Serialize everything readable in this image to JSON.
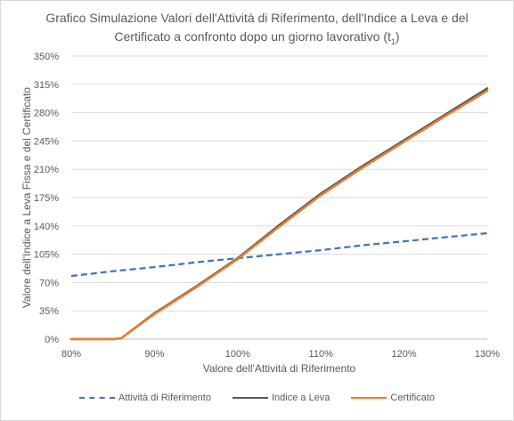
{
  "title": {
    "line1": "Grafico Simulazione Valori dell'Attività di Riferimento, dell'Indice a Leva e del",
    "line2": "Certificato a confronto dopo un giorno lavorativo (t",
    "line2_sub": "1",
    "line2_end": ")"
  },
  "chart_data": {
    "type": "line",
    "xlabel": "Valore dell'Attività di Riferimento",
    "ylabel": "Valore dell'Indice a Leva Fissa e del Certificato",
    "xlim": [
      80,
      130
    ],
    "ylim": [
      0,
      350
    ],
    "x_ticks": [
      "80%",
      "90%",
      "100%",
      "110%",
      "120%",
      "130%"
    ],
    "x_tick_values": [
      80,
      90,
      100,
      110,
      120,
      130
    ],
    "y_ticks": [
      "0%",
      "35%",
      "70%",
      "105%",
      "140%",
      "175%",
      "210%",
      "245%",
      "280%",
      "315%",
      "350%"
    ],
    "y_tick_values": [
      0,
      35,
      70,
      105,
      140,
      175,
      210,
      245,
      280,
      315,
      350
    ],
    "grid": "horizontal",
    "legend_position": "bottom",
    "series": [
      {
        "name": "Attività di Riferimento",
        "color": "#4472c4",
        "style": "dashed",
        "x": [
          80,
          85,
          90,
          95,
          100,
          105,
          110,
          115,
          120,
          125,
          130
        ],
        "y": [
          78,
          84,
          89,
          95,
          100,
          105,
          110,
          116,
          121,
          126,
          131
        ]
      },
      {
        "name": "Indice a Leva",
        "color": "#595959",
        "style": "solid",
        "x": [
          80,
          85,
          86,
          90,
          95,
          100,
          105,
          110,
          115,
          120,
          125,
          130
        ],
        "y": [
          0,
          0,
          1,
          32,
          65,
          100,
          141,
          180,
          214,
          246,
          278,
          310
        ]
      },
      {
        "name": "Certificato",
        "color": "#ed7d31",
        "style": "solid",
        "x": [
          80,
          85,
          86,
          90,
          95,
          100,
          105,
          110,
          115,
          120,
          125,
          130
        ],
        "y": [
          0,
          0,
          1,
          31,
          64,
          99,
          139,
          178,
          212,
          244,
          276,
          307
        ]
      }
    ]
  }
}
